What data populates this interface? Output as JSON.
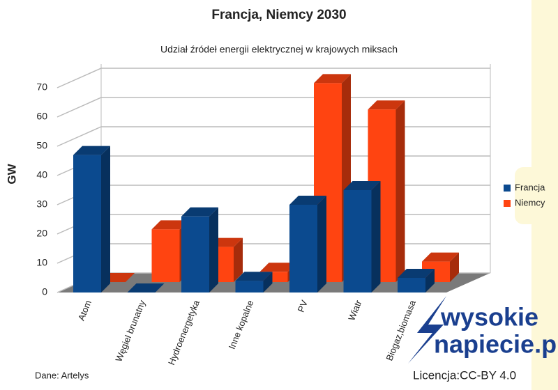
{
  "chart_data": {
    "type": "bar3d",
    "title": "Francja, Niemcy 2030",
    "subtitle": "Udział źródeł energii elektrycznej w krajowych miksach",
    "y_label": "GW",
    "categories": [
      "Atom",
      "Węgiel brunatny",
      "Hydroenergetyka",
      "Inne kopalne",
      "PV",
      "Wiatr",
      "Biogaz,biomasa"
    ],
    "series": [
      {
        "name": "Francja",
        "color": "#0b4a8f",
        "values": [
          47,
          0,
          26,
          4,
          30,
          35,
          5
        ]
      },
      {
        "name": "Niemcy",
        "color": "#ff4411",
        "values": [
          0,
          18,
          12,
          3.5,
          68,
          59,
          7
        ]
      }
    ],
    "ylim": [
      0,
      70
    ],
    "yticks": [
      0,
      10,
      20,
      30,
      40,
      50,
      60,
      70
    ],
    "grid": true,
    "source": "Dane: Artelys",
    "license": "Licencja:CC-BY 4.0",
    "logo": [
      "wysokie",
      "napiecie.pl"
    ]
  }
}
